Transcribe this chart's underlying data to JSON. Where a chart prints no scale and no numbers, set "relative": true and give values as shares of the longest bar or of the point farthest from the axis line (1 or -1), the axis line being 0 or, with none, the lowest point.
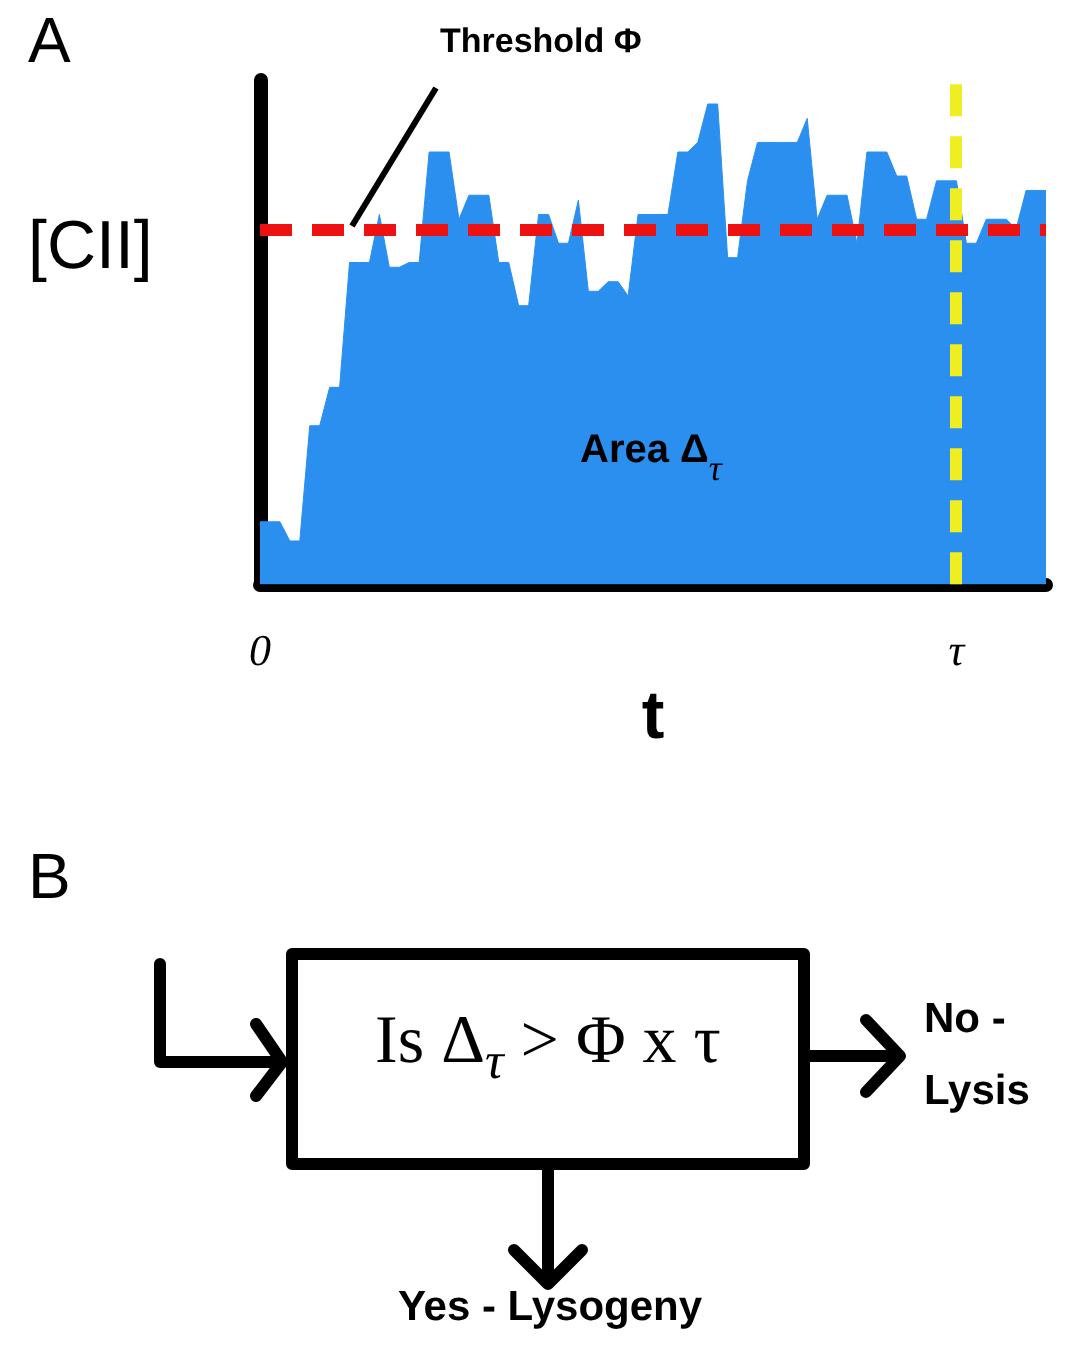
{
  "chart_data": [
    {
      "type": "area",
      "title": "A",
      "xlabel": "t",
      "ylabel": "[CII]",
      "relative": true,
      "color": "#2b8ff0",
      "categories": [
        "0",
        null,
        null,
        null,
        null,
        null,
        null,
        null,
        null,
        null,
        null,
        null,
        null,
        null,
        null,
        null,
        null,
        null,
        null,
        null,
        null,
        null,
        null,
        null,
        null,
        null,
        null,
        null,
        null,
        null,
        null,
        null,
        null,
        null,
        null,
        null,
        null,
        null,
        null,
        null,
        null,
        null,
        null,
        null,
        null,
        null,
        null,
        null,
        null,
        null,
        null,
        null,
        null,
        null,
        null,
        null,
        null,
        null,
        null,
        null,
        null,
        null,
        null,
        null,
        null,
        null,
        null,
        null,
        null,
        null,
        "τ",
        null,
        null,
        null,
        null,
        null,
        null,
        null,
        null,
        null
      ],
      "values": [
        0.13,
        0.13,
        0.13,
        0.09,
        0.09,
        0.33,
        0.33,
        0.41,
        0.41,
        0.67,
        0.67,
        0.67,
        0.77,
        0.66,
        0.66,
        0.67,
        0.67,
        0.9,
        0.9,
        0.9,
        0.76,
        0.81,
        0.81,
        0.81,
        0.67,
        0.67,
        0.58,
        0.58,
        0.77,
        0.77,
        0.71,
        0.71,
        0.8,
        0.61,
        0.61,
        0.63,
        0.63,
        0.6,
        0.77,
        0.77,
        0.77,
        0.77,
        0.9,
        0.9,
        0.92,
        1.0,
        1.0,
        0.68,
        0.68,
        0.84,
        0.92,
        0.92,
        0.92,
        0.92,
        0.92,
        0.97,
        0.76,
        0.81,
        0.81,
        0.81,
        0.71,
        0.9,
        0.9,
        0.9,
        0.85,
        0.85,
        0.76,
        0.76,
        0.84,
        0.84,
        0.84,
        0.71,
        0.71,
        0.76,
        0.76,
        0.76,
        0.74,
        0.82,
        0.82,
        0.82
      ],
      "ref_lines": [
        {
          "axis": "y",
          "value": 0.74,
          "label": "Threshold Φ",
          "color": "#ee1111",
          "line_style": "dashed"
        },
        {
          "axis": "x",
          "value": "τ",
          "color": "#eeee22",
          "line_style": "dashed"
        }
      ],
      "annotations": [
        "Area Δ$_{τ}$"
      ]
    },
    {
      "type": "other",
      "title": "B",
      "annotations": [
        "Is Δ$_{τ}$ > Φ x τ",
        "No - Lysis",
        "Yes - Lysogeny"
      ]
    }
  ]
}
